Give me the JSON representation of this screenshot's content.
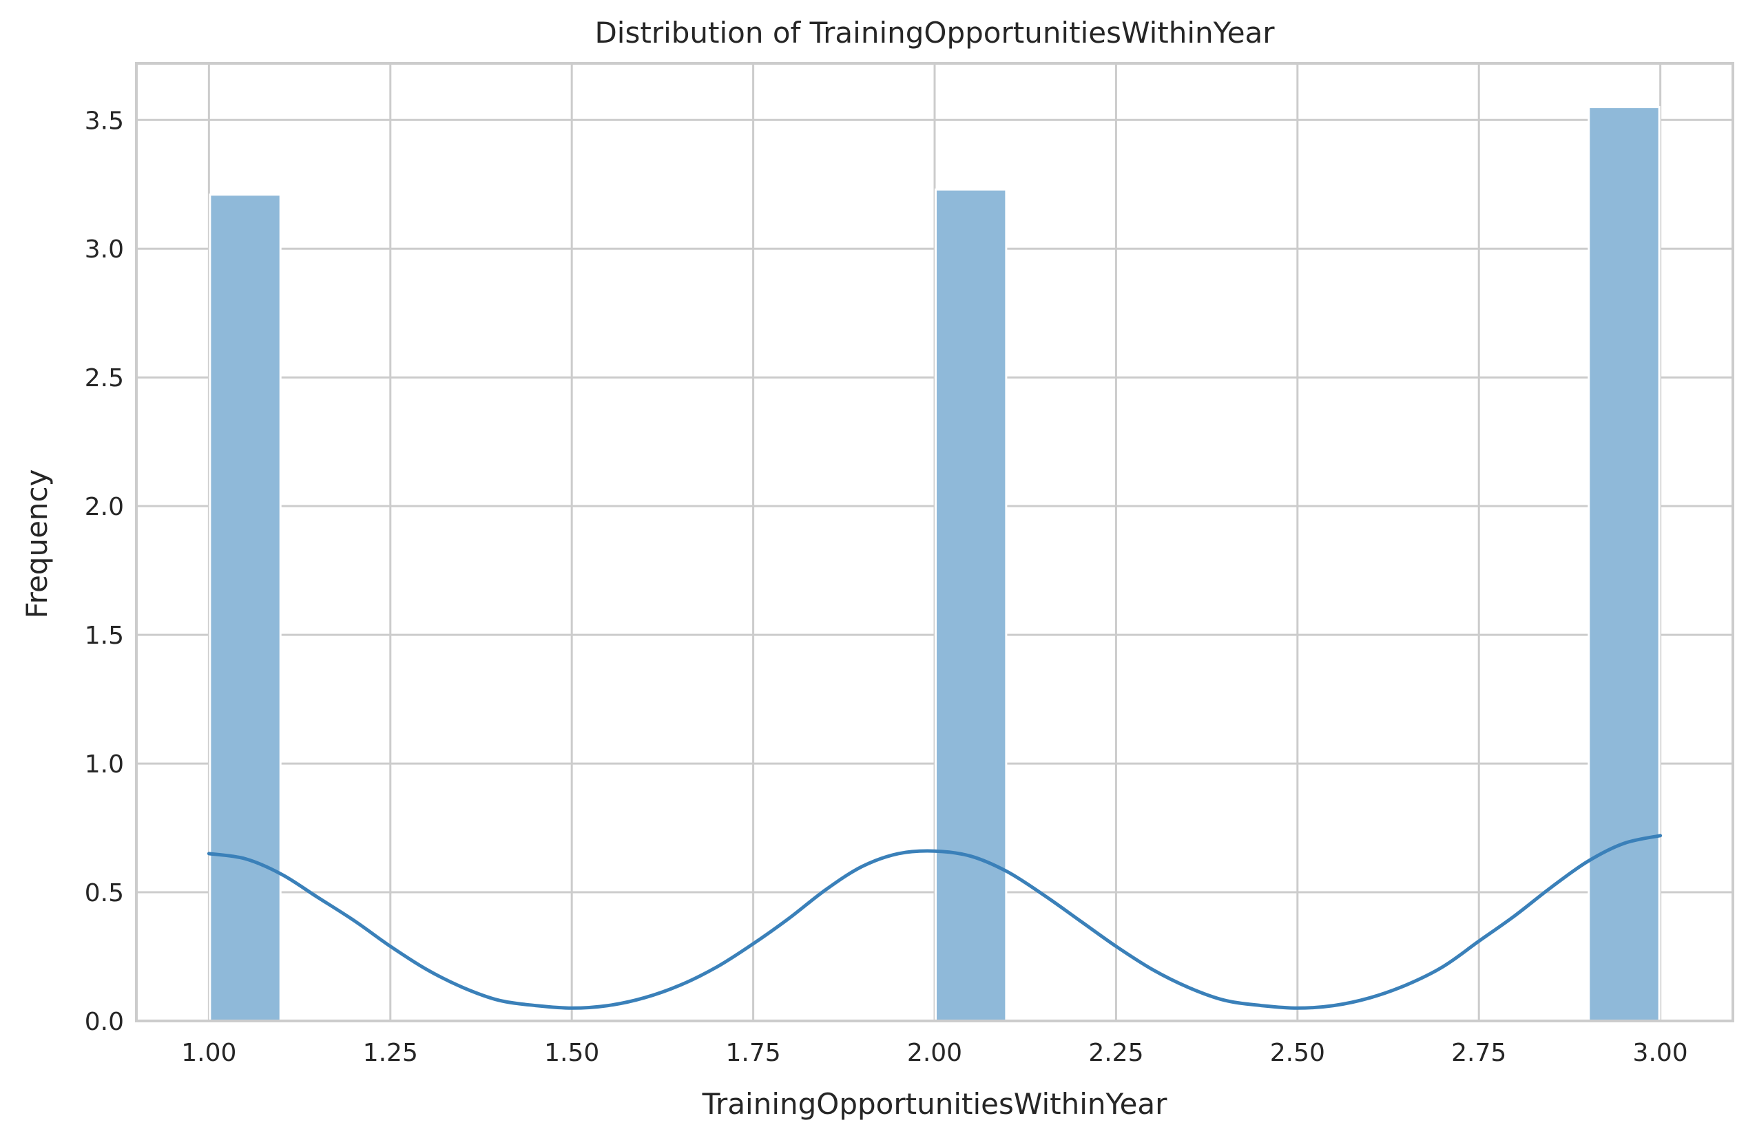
{
  "chart_data": {
    "type": "bar",
    "title": "Distribution of TrainingOpportunitiesWithinYear",
    "xlabel": "TrainingOpportunitiesWithinYear",
    "ylabel": "Frequency",
    "xlim": [
      0.9,
      3.1
    ],
    "ylim": [
      0,
      3.72
    ],
    "x_ticks": [
      "1.00",
      "1.25",
      "1.50",
      "1.75",
      "2.00",
      "2.25",
      "2.50",
      "2.75",
      "3.00"
    ],
    "y_ticks": [
      "0.0",
      "0.5",
      "1.0",
      "1.5",
      "2.0",
      "2.5",
      "3.0",
      "3.5"
    ],
    "grid": true,
    "bar_color": "#8fb9d9",
    "kde_color": "#3a80b9",
    "bins": [
      {
        "x0": 1.0,
        "x1": 1.1,
        "value": 3.21
      },
      {
        "x0": 1.1,
        "x1": 1.2,
        "value": 0
      },
      {
        "x0": 1.2,
        "x1": 1.3,
        "value": 0
      },
      {
        "x0": 1.3,
        "x1": 1.4,
        "value": 0
      },
      {
        "x0": 1.4,
        "x1": 1.5,
        "value": 0
      },
      {
        "x0": 1.5,
        "x1": 1.6,
        "value": 0
      },
      {
        "x0": 1.6,
        "x1": 1.7,
        "value": 0
      },
      {
        "x0": 1.7,
        "x1": 1.8,
        "value": 0
      },
      {
        "x0": 1.8,
        "x1": 1.9,
        "value": 0
      },
      {
        "x0": 1.9,
        "x1": 2.0,
        "value": 0
      },
      {
        "x0": 2.0,
        "x1": 2.1,
        "value": 3.23
      },
      {
        "x0": 2.1,
        "x1": 2.2,
        "value": 0
      },
      {
        "x0": 2.2,
        "x1": 2.3,
        "value": 0
      },
      {
        "x0": 2.3,
        "x1": 2.4,
        "value": 0
      },
      {
        "x0": 2.4,
        "x1": 2.5,
        "value": 0
      },
      {
        "x0": 2.5,
        "x1": 2.6,
        "value": 0
      },
      {
        "x0": 2.6,
        "x1": 2.7,
        "value": 0
      },
      {
        "x0": 2.7,
        "x1": 2.8,
        "value": 0
      },
      {
        "x0": 2.8,
        "x1": 2.9,
        "value": 0
      },
      {
        "x0": 2.9,
        "x1": 3.0,
        "value": 3.55
      }
    ],
    "kde": {
      "x": [
        1.0,
        1.05,
        1.1,
        1.15,
        1.2,
        1.25,
        1.3,
        1.35,
        1.4,
        1.45,
        1.5,
        1.55,
        1.6,
        1.65,
        1.7,
        1.75,
        1.8,
        1.85,
        1.9,
        1.95,
        2.0,
        2.05,
        2.1,
        2.15,
        2.2,
        2.25,
        2.3,
        2.35,
        2.4,
        2.45,
        2.5,
        2.55,
        2.6,
        2.65,
        2.7,
        2.75,
        2.8,
        2.85,
        2.9,
        2.95,
        3.0
      ],
      "y": [
        0.65,
        0.63,
        0.57,
        0.48,
        0.39,
        0.29,
        0.2,
        0.13,
        0.08,
        0.06,
        0.05,
        0.06,
        0.09,
        0.14,
        0.21,
        0.3,
        0.4,
        0.51,
        0.6,
        0.65,
        0.66,
        0.64,
        0.58,
        0.49,
        0.39,
        0.29,
        0.2,
        0.13,
        0.08,
        0.06,
        0.05,
        0.06,
        0.09,
        0.14,
        0.21,
        0.31,
        0.41,
        0.52,
        0.62,
        0.69,
        0.72
      ]
    }
  }
}
